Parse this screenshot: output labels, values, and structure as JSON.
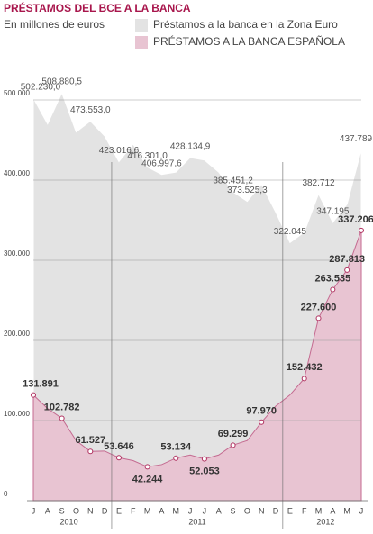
{
  "chart_data": {
    "type": "area",
    "title": "PRÉSTAMOS DEL BCE A LA BANCA",
    "subtitle": "En millones de euros",
    "categories": [
      "J",
      "A",
      "S",
      "O",
      "N",
      "D",
      "E",
      "F",
      "M",
      "A",
      "M",
      "J",
      "J",
      "A",
      "S",
      "O",
      "N",
      "D",
      "E",
      "F",
      "M",
      "A",
      "M",
      "J"
    ],
    "year_labels": [
      "2010",
      "2011",
      "2012"
    ],
    "series": [
      {
        "name": "Préstamos a la banca en la  Zona Euro",
        "color": "#e3e3e3",
        "values": [
          502230.0,
          470000,
          508880.5,
          460000,
          473553.0,
          455000,
          423016.6,
          445000,
          416301.0,
          406997.6,
          410000,
          428134.9,
          425000,
          410000,
          385451.2,
          373525.3,
          395000,
          360000,
          322045,
          335000,
          382712,
          347195,
          370000,
          437789
        ],
        "value_labels": [
          "502.230,0",
          null,
          "508.880,5",
          null,
          "473.553,0",
          null,
          "423.016,6",
          null,
          "416.301,0",
          "406.997,6",
          null,
          "428.134,9",
          null,
          null,
          "385.451,2",
          "373.525,3",
          null,
          null,
          "322.045",
          null,
          "382.712",
          "347.195",
          null,
          "437.789"
        ]
      },
      {
        "name": "PRÉSTAMOS A LA BANCA ESPAÑOLA",
        "color": "#e8c4d2",
        "values": [
          131891,
          115000,
          102782,
          75000,
          61527,
          62000,
          53646,
          50000,
          42244,
          45000,
          53134,
          57000,
          52053,
          57000,
          69299,
          75000,
          97970,
          118000,
          132000,
          152432,
          227600,
          263535,
          287813,
          337206
        ],
        "value_labels": [
          "131.891",
          null,
          "102.782",
          null,
          "61.527",
          null,
          "53.646",
          null,
          "42.244",
          null,
          "53.134",
          null,
          "52.053",
          null,
          "69.299",
          null,
          "97.970",
          null,
          null,
          "152.432",
          "227.600",
          "263.535",
          "287.813",
          "337.206"
        ]
      }
    ],
    "ylim": [
      0,
      500000
    ],
    "yticks": [
      0,
      {
        "value": 100000,
        "label": "100.000"
      },
      {
        "value": 200000,
        "label": "200.000"
      },
      {
        "value": 300000,
        "label": "300.000"
      },
      {
        "value": 400000,
        "label": "400.000"
      },
      {
        "value": 500000,
        "label": "500.000"
      }
    ],
    "grid": true
  }
}
